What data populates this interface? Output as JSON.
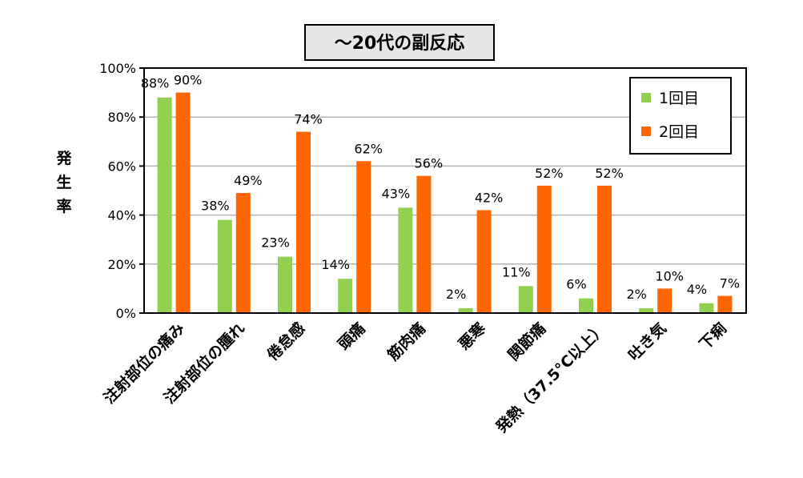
{
  "chart_data": {
    "type": "bar",
    "title": "～20代の副反応",
    "ylabel": "発生率",
    "xlabel": "",
    "ylim": [
      0,
      100
    ],
    "y_ticks": [
      0,
      20,
      40,
      60,
      80,
      100
    ],
    "y_tick_labels": [
      "0%",
      "20%",
      "40%",
      "60%",
      "80%",
      "100%"
    ],
    "grid": true,
    "legend_position": "top-right",
    "categories": [
      "注射部位の痛み",
      "注射部位の腫れ",
      "倦怠感",
      "頭痛",
      "筋肉痛",
      "悪寒",
      "関節痛",
      "発熱（37.5°C以上）",
      "吐き気",
      "下痢"
    ],
    "series": [
      {
        "name": "1回目",
        "color": "#92D050",
        "values": [
          88,
          38,
          23,
          14,
          43,
          2,
          11,
          6,
          2,
          4
        ],
        "labels": [
          "88%",
          "38%",
          "23%",
          "14%",
          "43%",
          "2%",
          "11%",
          "6%",
          "2%",
          "4%"
        ]
      },
      {
        "name": "2回目",
        "color": "#FF6600",
        "values": [
          90,
          49,
          74,
          62,
          56,
          42,
          52,
          52,
          10,
          7
        ],
        "labels": [
          "90%",
          "49%",
          "74%",
          "62%",
          "56%",
          "42%",
          "52%",
          "52%",
          "10%",
          "7%"
        ]
      }
    ]
  }
}
